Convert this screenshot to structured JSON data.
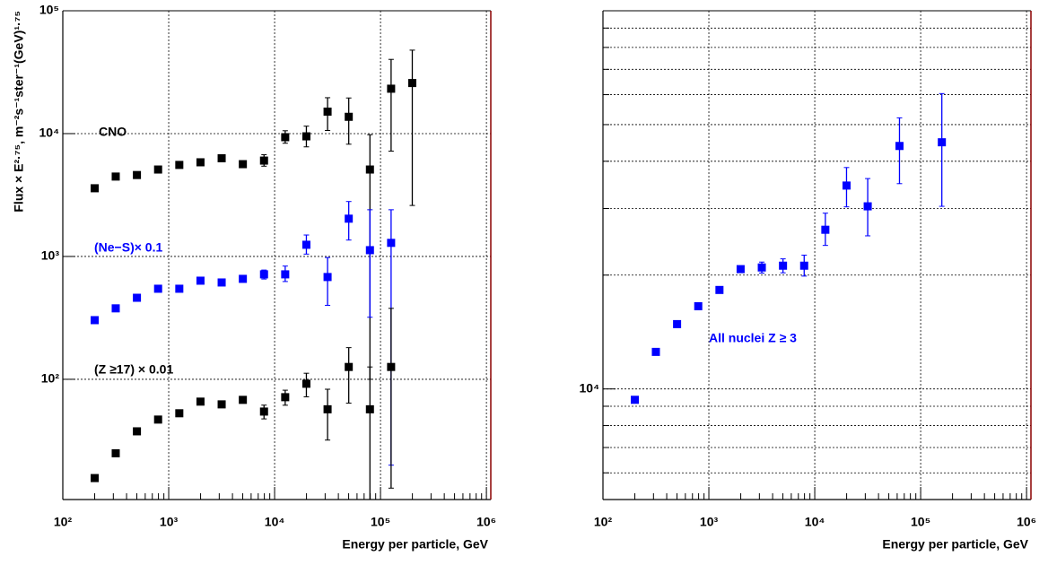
{
  "chart_data": [
    {
      "type": "scatter",
      "x_label": "Energy per particle, GeV",
      "y_label": "Flux × E²·⁷⁵, m⁻²s⁻¹ster⁻¹(GeV)¹·⁷⁵",
      "log_x": true,
      "log_y": true,
      "grid": true,
      "xlim": [
        100,
        1100000
      ],
      "ylim": [
        10.5,
        100000
      ],
      "xticks": [
        {
          "value": 100,
          "label": "10²"
        },
        {
          "value": 1000,
          "label": "10³"
        },
        {
          "value": 10000,
          "label": "10⁴"
        },
        {
          "value": 100000,
          "label": "10⁵"
        },
        {
          "value": 1000000,
          "label": "10⁶"
        }
      ],
      "yticks": [
        {
          "value": 100,
          "label": "10²"
        },
        {
          "value": 1000,
          "label": "10³"
        },
        {
          "value": 10000,
          "label": "10⁴"
        },
        {
          "value": 100000,
          "label": "10⁵"
        }
      ],
      "series": [
        {
          "name": "CNO",
          "color": "#000000",
          "x": [
            200,
            316,
            501,
            794,
            1259,
            1995,
            3162,
            5012,
            7943,
            12589,
            19953,
            31623,
            50119,
            79433,
            125893,
            199526
          ],
          "values": [
            3590,
            4470,
            4600,
            5100,
            5560,
            5840,
            6300,
            5640,
            6030,
            9350,
            9500,
            15100,
            13700,
            5100,
            23200,
            25800
          ],
          "error_low": [
            null,
            null,
            null,
            null,
            null,
            null,
            null,
            300,
            600,
            1000,
            1700,
            4500,
            5500,
            5000,
            16000,
            23200
          ],
          "error_high": [
            null,
            null,
            null,
            null,
            null,
            null,
            null,
            300,
            700,
            1200,
            2000,
            4500,
            5800,
            4700,
            17000,
            22000
          ]
        },
        {
          "name": "(Ne−S)× 0.1",
          "color": "#0000ff",
          "x": [
            200,
            316,
            501,
            794,
            1259,
            1995,
            3162,
            5012,
            7943,
            12589,
            19953,
            31623,
            50119,
            79433,
            125893
          ],
          "values": [
            303,
            378,
            461,
            546,
            546,
            635,
            614,
            657,
            715,
            715,
            1245,
            680,
            2030,
            1125,
            1290
          ],
          "error_low": [
            null,
            null,
            null,
            null,
            null,
            null,
            null,
            null,
            60,
            90,
            200,
            280,
            670,
            805,
            1270
          ],
          "error_high": [
            null,
            null,
            null,
            null,
            null,
            null,
            null,
            null,
            60,
            120,
            250,
            300,
            770,
            1275,
            1110
          ]
        },
        {
          "name": "(Z ≥17) × 0.01",
          "color": "#000000",
          "x": [
            200,
            316,
            501,
            794,
            1259,
            1995,
            3162,
            5012,
            7943,
            12589,
            19953,
            31623,
            50119,
            79433,
            125893
          ],
          "values": [
            15.7,
            25,
            37.7,
            47,
            52.9,
            65.8,
            62.5,
            68,
            54.6,
            71.5,
            92,
            57,
            126,
            57,
            126
          ],
          "error_low": [
            null,
            null,
            null,
            null,
            null,
            null,
            null,
            4,
            7,
            10,
            20,
            25,
            62,
            57,
            113
          ],
          "error_high": [
            null,
            null,
            null,
            null,
            null,
            null,
            null,
            4,
            7,
            10,
            20,
            26,
            55,
            69,
            252
          ]
        }
      ]
    },
    {
      "type": "scatter",
      "x_label": "Energy per particle, GeV",
      "log_x": true,
      "log_y": true,
      "grid": true,
      "xlim": [
        100,
        1100000
      ],
      "ylim": [
        5100,
        100000
      ],
      "xticks": [
        {
          "value": 100,
          "label": "10²"
        },
        {
          "value": 1000,
          "label": "10³"
        },
        {
          "value": 10000,
          "label": "10⁴"
        },
        {
          "value": 100000,
          "label": "10⁵"
        },
        {
          "value": 1000000,
          "label": "10⁶"
        }
      ],
      "yticks": [
        {
          "value": 10000,
          "label": "10⁴"
        }
      ],
      "yminor": [
        6000,
        7000,
        8000,
        9000,
        20000,
        30000,
        40000,
        50000,
        60000,
        70000,
        80000,
        90000
      ],
      "series": [
        {
          "name": "All nuclei Z ≥ 3",
          "color": "#0000ff",
          "x": [
            200,
            316,
            501,
            794,
            1259,
            1995,
            3162,
            5012,
            7943,
            12589,
            19953,
            31623,
            63096,
            158489
          ],
          "values": [
            9360,
            12530,
            14840,
            16550,
            18270,
            20740,
            20950,
            21180,
            21180,
            26360,
            34500,
            30400,
            43900,
            44900
          ],
          "error_low": [
            null,
            null,
            null,
            null,
            null,
            null,
            700,
            900,
            1300,
            2400,
            4200,
            5000,
            9000,
            14500
          ],
          "error_high": [
            null,
            null,
            null,
            null,
            null,
            null,
            700,
            900,
            1400,
            2800,
            4000,
            5600,
            8200,
            15500
          ]
        }
      ]
    }
  ]
}
